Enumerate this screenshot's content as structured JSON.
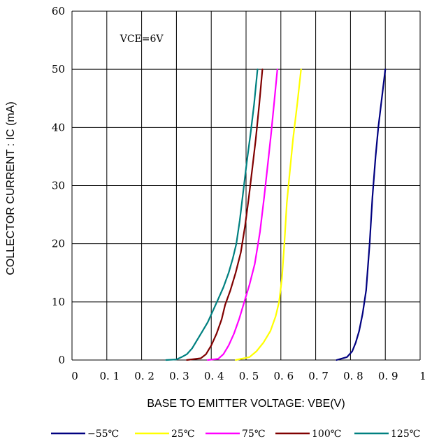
{
  "chart_data": {
    "type": "line",
    "title": "",
    "xlabel": "BASE TO EMITTER VOLTAGE: VBE(V)",
    "ylabel": "COLLECTOR CURRENT : IC (mA)",
    "xlim": [
      0,
      1
    ],
    "ylim": [
      0,
      60
    ],
    "xticks": [
      "0",
      "0. 1",
      "0. 2",
      "0. 3",
      "0. 4",
      "0. 5",
      "0. 6",
      "0. 7",
      "0. 8",
      "0. 9",
      "1"
    ],
    "yticks": [
      "0",
      "10",
      "20",
      "30",
      "40",
      "50",
      "60"
    ],
    "grid": true,
    "legend_position": "bottom",
    "annotations": [
      {
        "text": "VCE=6V",
        "x": 0.13,
        "y": 55.3
      }
    ],
    "series": [
      {
        "name": "−55℃",
        "color": "#000080",
        "x": [
          0.76,
          0.79,
          0.805,
          0.815,
          0.825,
          0.835,
          0.845,
          0.855,
          0.863,
          0.872,
          0.88,
          0.89,
          0.9
        ],
        "y": [
          0,
          0.5,
          1.5,
          3,
          5,
          8,
          12,
          20,
          28,
          35,
          40,
          45,
          50
        ]
      },
      {
        "name": "25℃",
        "color": "#ffff00",
        "x": [
          0.47,
          0.51,
          0.53,
          0.55,
          0.57,
          0.585,
          0.595,
          0.603,
          0.61,
          0.617,
          0.625,
          0.635,
          0.647,
          0.658
        ],
        "y": [
          0,
          0.5,
          1.5,
          3,
          5,
          7.5,
          10,
          14,
          20,
          27,
          32,
          38,
          44,
          50
        ]
      },
      {
        "name": "75℃",
        "color": "#ff00ff",
        "x": [
          0.39,
          0.42,
          0.435,
          0.45,
          0.465,
          0.48,
          0.495,
          0.51,
          0.525,
          0.54,
          0.552,
          0.563,
          0.572,
          0.582,
          0.59
        ],
        "y": [
          0,
          0.2,
          1,
          2.5,
          4.5,
          7,
          10,
          13,
          16.5,
          22,
          28,
          34,
          39,
          45,
          50
        ]
      },
      {
        "name": "100℃",
        "color": "#800000",
        "x": [
          0.33,
          0.37,
          0.385,
          0.4,
          0.415,
          0.43,
          0.44,
          0.455,
          0.47,
          0.485,
          0.497,
          0.508,
          0.518,
          0.528,
          0.538,
          0.547
        ],
        "y": [
          0,
          0.3,
          1,
          2.5,
          4.5,
          7,
          9.5,
          12,
          15,
          18.5,
          23,
          28,
          33,
          38,
          44,
          50
        ]
      },
      {
        "name": "125℃",
        "color": "#008080",
        "x": [
          0.27,
          0.3,
          0.315,
          0.33,
          0.345,
          0.36,
          0.375,
          0.39,
          0.405,
          0.42,
          0.435,
          0.45,
          0.462,
          0.472,
          0.482,
          0.492,
          0.502,
          0.513,
          0.523,
          0.533
        ],
        "y": [
          0,
          0.1,
          0.5,
          1,
          2,
          3.5,
          5,
          6.5,
          8.5,
          10.5,
          12.5,
          15,
          17.5,
          20,
          24,
          29,
          34,
          39,
          44,
          50
        ]
      }
    ]
  }
}
